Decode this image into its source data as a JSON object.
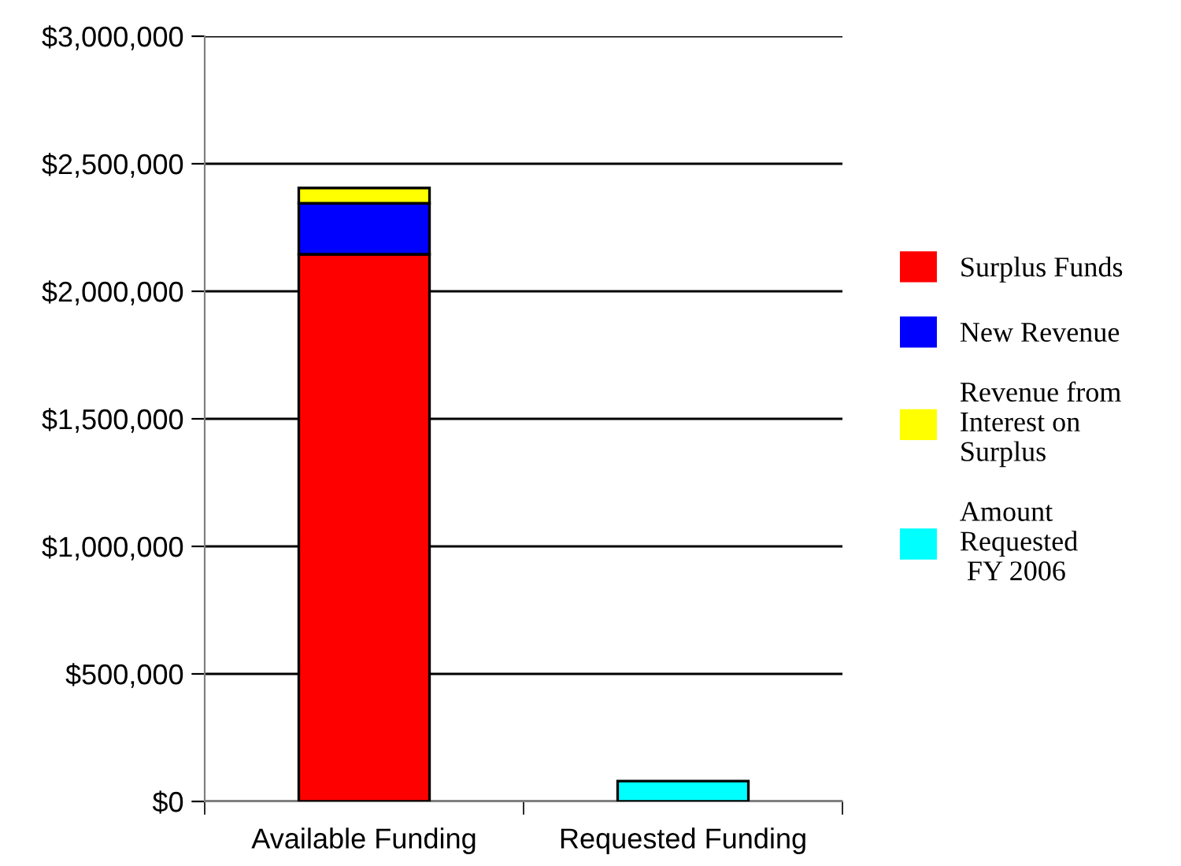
{
  "chart_data": {
    "type": "bar",
    "stacked": true,
    "categories": [
      "Available Funding",
      "Requested Funding"
    ],
    "series": [
      {
        "name": "Surplus Funds",
        "color": "#ff0000",
        "values": [
          2145000,
          null
        ]
      },
      {
        "name": "New Revenue",
        "color": "#0000ff",
        "values": [
          200000,
          null
        ]
      },
      {
        "name": "Revenue from\nInterest on\nSurplus",
        "color": "#ffff00",
        "values": [
          60000,
          null
        ]
      },
      {
        "name": "Amount\nRequested\n FY 2006",
        "color": "#00ffff",
        "values": [
          null,
          80000
        ]
      }
    ],
    "ylim": [
      0,
      3000000
    ],
    "yticks": [
      {
        "value": 0,
        "label": "$0"
      },
      {
        "value": 500000,
        "label": "$500,000"
      },
      {
        "value": 1000000,
        "label": "$1,000,000"
      },
      {
        "value": 1500000,
        "label": "$1,500,000"
      },
      {
        "value": 2000000,
        "label": "$2,000,000"
      },
      {
        "value": 2500000,
        "label": "$2,500,000"
      },
      {
        "value": 3000000,
        "label": "$3,000,000"
      }
    ],
    "grid": "y",
    "legend": "right"
  }
}
